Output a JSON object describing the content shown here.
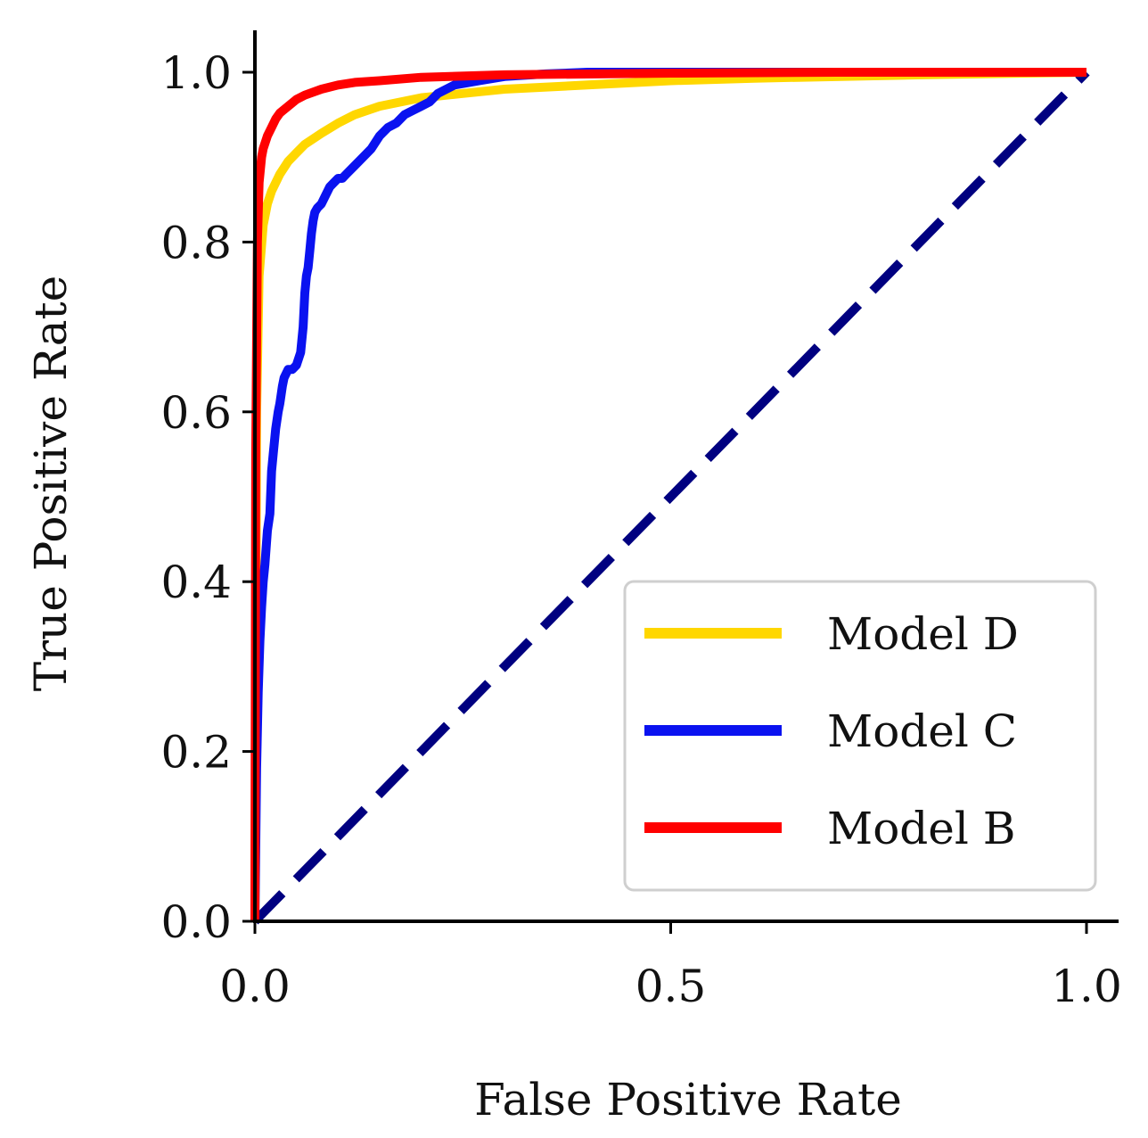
{
  "chart_data": {
    "type": "line",
    "xlabel": "False Positive Rate",
    "ylabel": "True Positive Rate",
    "xlim": [
      0,
      1
    ],
    "ylim": [
      0,
      1.05
    ],
    "xticks": [
      0.0,
      0.5,
      1.0
    ],
    "xtick_labels": [
      "0.0",
      "0.5",
      "1.0"
    ],
    "yticks": [
      0.0,
      0.2,
      0.4,
      0.6,
      0.8,
      1.0
    ],
    "ytick_labels": [
      "0.0",
      "0.2",
      "0.4",
      "0.6",
      "0.8",
      "1.0"
    ],
    "grid": false,
    "legend_position": "lower-right",
    "series": [
      {
        "name": "Model D",
        "color": "#FFD700",
        "x": [
          0,
          0.002,
          0.005,
          0.01,
          0.015,
          0.02,
          0.03,
          0.04,
          0.05,
          0.06,
          0.08,
          0.1,
          0.12,
          0.15,
          0.2,
          0.25,
          0.3,
          0.4,
          0.5,
          0.6,
          0.8,
          1.0
        ],
        "y": [
          0,
          0.6,
          0.76,
          0.82,
          0.845,
          0.86,
          0.88,
          0.895,
          0.905,
          0.915,
          0.928,
          0.94,
          0.95,
          0.96,
          0.97,
          0.975,
          0.98,
          0.985,
          0.99,
          0.993,
          0.997,
          1.0
        ]
      },
      {
        "name": "Model C",
        "color": "#0A12F0",
        "x": [
          0,
          0.002,
          0.004,
          0.006,
          0.008,
          0.01,
          0.012,
          0.015,
          0.018,
          0.02,
          0.022,
          0.025,
          0.028,
          0.03,
          0.033,
          0.035,
          0.04,
          0.045,
          0.05,
          0.055,
          0.058,
          0.06,
          0.062,
          0.064,
          0.066,
          0.068,
          0.07,
          0.072,
          0.075,
          0.08,
          0.085,
          0.09,
          0.095,
          0.1,
          0.105,
          0.11,
          0.12,
          0.13,
          0.14,
          0.15,
          0.16,
          0.17,
          0.18,
          0.19,
          0.2,
          0.21,
          0.22,
          0.24,
          0.27,
          0.3,
          0.35,
          0.4,
          0.5,
          0.6,
          0.8,
          1.0
        ],
        "y": [
          0,
          0.18,
          0.27,
          0.33,
          0.37,
          0.4,
          0.42,
          0.46,
          0.48,
          0.53,
          0.55,
          0.58,
          0.6,
          0.61,
          0.63,
          0.64,
          0.65,
          0.65,
          0.655,
          0.67,
          0.7,
          0.74,
          0.76,
          0.77,
          0.79,
          0.81,
          0.825,
          0.835,
          0.84,
          0.845,
          0.855,
          0.865,
          0.87,
          0.875,
          0.875,
          0.88,
          0.89,
          0.9,
          0.91,
          0.925,
          0.935,
          0.94,
          0.95,
          0.955,
          0.96,
          0.965,
          0.975,
          0.985,
          0.99,
          0.995,
          0.998,
          1.0,
          1.0,
          1.0,
          1.0,
          1.0
        ]
      },
      {
        "name": "Model B",
        "color": "#FF0000",
        "x": [
          0,
          0.001,
          0.003,
          0.005,
          0.008,
          0.01,
          0.015,
          0.02,
          0.025,
          0.03,
          0.04,
          0.05,
          0.06,
          0.08,
          0.1,
          0.12,
          0.15,
          0.2,
          0.3,
          0.5,
          0.7,
          1.0
        ],
        "y": [
          0,
          0.55,
          0.8,
          0.87,
          0.9,
          0.91,
          0.925,
          0.935,
          0.945,
          0.952,
          0.96,
          0.968,
          0.973,
          0.98,
          0.985,
          0.988,
          0.99,
          0.994,
          0.997,
          0.999,
          1.0,
          1.0
        ]
      }
    ],
    "reference_line": {
      "color": "#000080",
      "style": "dashed",
      "x": [
        0,
        1
      ],
      "y": [
        0,
        1
      ]
    }
  }
}
